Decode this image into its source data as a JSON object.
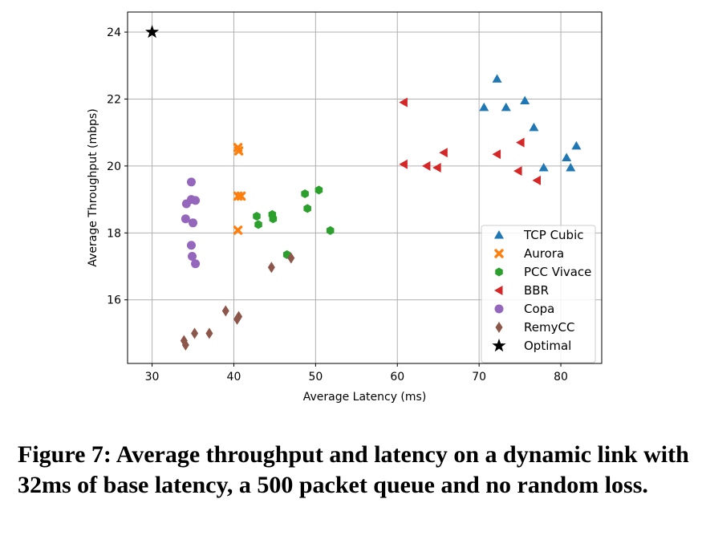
{
  "chart_data": {
    "type": "scatter",
    "title": "",
    "xlabel": "Average Latency (ms)",
    "ylabel": "Average Throughput (mbps)",
    "xlim": [
      27,
      85
    ],
    "ylim": [
      14.1,
      24.6
    ],
    "xticks": [
      30,
      40,
      50,
      60,
      70,
      80
    ],
    "yticks": [
      16,
      18,
      20,
      22,
      24
    ],
    "grid": true,
    "legend_position": "lower-right",
    "series": [
      {
        "name": "TCP Cubic",
        "marker": "triangle-up",
        "color": "#1f77b4",
        "points": [
          [
            70.6,
            21.75
          ],
          [
            72.2,
            22.6
          ],
          [
            73.3,
            21.75
          ],
          [
            75.6,
            21.95
          ],
          [
            76.7,
            21.15
          ],
          [
            77.9,
            19.95
          ],
          [
            80.7,
            20.25
          ],
          [
            81.2,
            19.95
          ],
          [
            81.9,
            20.6
          ]
        ]
      },
      {
        "name": "Aurora",
        "marker": "x",
        "color": "#ff7f0e",
        "points": [
          [
            40.5,
            20.55
          ],
          [
            40.6,
            20.45
          ],
          [
            40.5,
            19.1
          ],
          [
            40.9,
            19.1
          ],
          [
            40.5,
            18.08
          ]
        ]
      },
      {
        "name": "PCC Vivace",
        "marker": "hexagon",
        "color": "#2ca02c",
        "points": [
          [
            42.8,
            18.5
          ],
          [
            43.0,
            18.25
          ],
          [
            44.7,
            18.55
          ],
          [
            44.8,
            18.42
          ],
          [
            46.5,
            17.35
          ],
          [
            48.7,
            19.17
          ],
          [
            49.0,
            18.73
          ],
          [
            50.4,
            19.28
          ],
          [
            51.8,
            18.07
          ]
        ]
      },
      {
        "name": "BBR",
        "marker": "triangle-left",
        "color": "#d62728",
        "points": [
          [
            60.8,
            21.9
          ],
          [
            60.8,
            20.05
          ],
          [
            63.6,
            20.0
          ],
          [
            64.9,
            19.95
          ],
          [
            65.7,
            20.4
          ],
          [
            72.2,
            20.35
          ],
          [
            74.8,
            19.85
          ],
          [
            75.1,
            20.7
          ],
          [
            77.1,
            19.57
          ]
        ]
      },
      {
        "name": "Copa",
        "marker": "circle",
        "color": "#9467bd",
        "points": [
          [
            34.2,
            18.87
          ],
          [
            34.1,
            18.42
          ],
          [
            34.8,
            19.52
          ],
          [
            34.8,
            19.0
          ],
          [
            35.3,
            18.97
          ],
          [
            35.0,
            18.3
          ],
          [
            34.8,
            17.63
          ],
          [
            34.9,
            17.3
          ],
          [
            35.3,
            17.08
          ]
        ]
      },
      {
        "name": "RemyCC",
        "marker": "diamond",
        "color": "#8c564b",
        "points": [
          [
            33.9,
            14.78
          ],
          [
            34.1,
            14.65
          ],
          [
            35.2,
            15.0
          ],
          [
            37.0,
            15.0
          ],
          [
            39.0,
            15.67
          ],
          [
            40.4,
            15.42
          ],
          [
            40.6,
            15.5
          ],
          [
            44.6,
            16.97
          ],
          [
            47.0,
            17.25
          ]
        ]
      },
      {
        "name": "Optimal",
        "marker": "star",
        "color": "#000000",
        "points": [
          [
            30.0,
            24.0
          ]
        ]
      }
    ]
  },
  "caption": "Figure 7: Average throughput and latency on a dynamic link with 32ms of base latency, a 500 packet queue and no random loss."
}
